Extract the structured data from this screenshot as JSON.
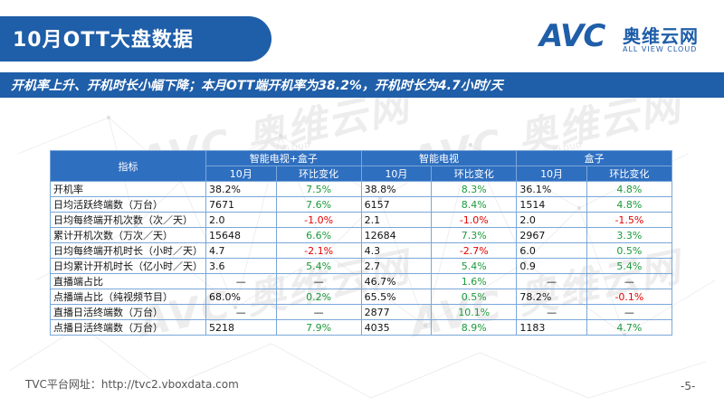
{
  "title": "10月OTT大盘数据",
  "subtitle": "开机率上升、开机时长小幅下降；本月OTT端开机率为38.2%，开机时长为4.7小时/天",
  "logo": {
    "avc": "AVC",
    "cn": "奥维云网",
    "en": "ALL VIEW CLOUD"
  },
  "watermark": {
    "text": "AVC 奥维云网",
    "small": "ALL VIEW CLOUD"
  },
  "table": {
    "index_header": "指标",
    "groups": [
      "智能电视+盒子",
      "智能电视",
      "盒子"
    ],
    "subheaders": [
      "10月",
      "环比变化"
    ],
    "rows": [
      {
        "name": "开机率",
        "cells": [
          "38.2%",
          "7.5%",
          "38.8%",
          "8.3%",
          "36.1%",
          "4.8%"
        ]
      },
      {
        "name": "日均活跃终端数（万台）",
        "cells": [
          "7671",
          "7.6%",
          "6157",
          "8.4%",
          "1514",
          "4.8%"
        ]
      },
      {
        "name": "日均每终端开机次数（次／天）",
        "cells": [
          "2.0",
          "-1.0%",
          "2.1",
          "-1.0%",
          "2.0",
          "-1.5%"
        ]
      },
      {
        "name": "累计开机次数（万次／天）",
        "cells": [
          "15648",
          "6.6%",
          "12684",
          "7.3%",
          "2967",
          "3.3%"
        ]
      },
      {
        "name": "日均每终端开机时长（小时／天）",
        "cells": [
          "4.7",
          "-2.1%",
          "4.3",
          "-2.7%",
          "6.0",
          "0.5%"
        ]
      },
      {
        "name": "日均累计开机时长（亿小时／天）",
        "cells": [
          "3.6",
          "5.4%",
          "2.7",
          "5.4%",
          "0.9",
          "5.4%"
        ]
      },
      {
        "name": "直播端占比",
        "cells": [
          "—",
          "—",
          "46.7%",
          "1.6%",
          "—",
          "—"
        ]
      },
      {
        "name": "点播端占比（纯视频节目）",
        "cells": [
          "68.0%",
          "0.2%",
          "65.5%",
          "0.5%",
          "78.2%",
          "-0.1%"
        ]
      },
      {
        "name": "直播日活终端数（万台）",
        "cells": [
          "—",
          "—",
          "2877",
          "10.1%",
          "—",
          "—"
        ]
      },
      {
        "name": "点播日活终端数（万台）",
        "cells": [
          "5218",
          "7.9%",
          "4035",
          "8.9%",
          "1183",
          "4.7%"
        ]
      }
    ]
  },
  "footer": "TVC平台网址：http://tvc2.vboxdata.com",
  "page_number": "-5-",
  "colors": {
    "primary": "#1f5ea8",
    "positive": "#1a9a3a",
    "negative": "#e60000"
  }
}
